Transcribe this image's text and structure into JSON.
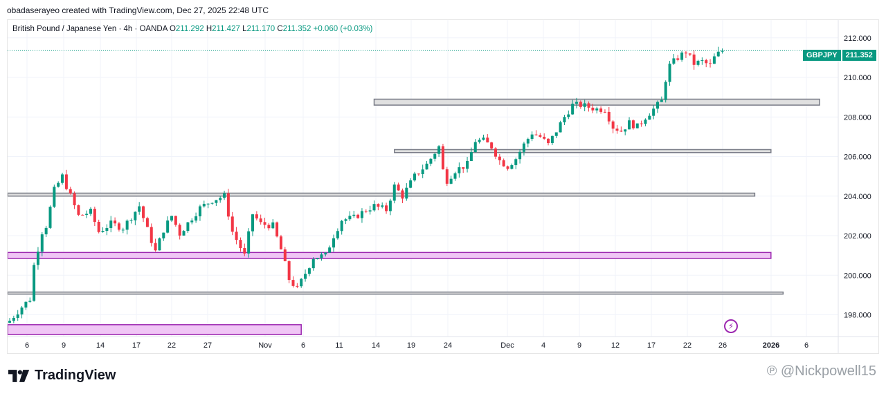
{
  "attribution": "obadaserayeo created with TradingView.com, Dec 27, 2025 22:48 UTC",
  "legend": {
    "symbol_desc": "British Pound / Japanese Yen · 4h · OANDA",
    "open_label": "O",
    "open": "211.292",
    "high_label": "H",
    "high": "211.427",
    "low_label": "L",
    "low": "211.170",
    "close_label": "C",
    "close": "211.352",
    "change": "+0.060 (+0.03%)"
  },
  "price_tag": {
    "symbol": "GBPJPY",
    "price": "211.352"
  },
  "footer": {
    "logo_text": "TradingView",
    "watermark": "℗ @Nickpowell15"
  },
  "colors": {
    "up": "#089981",
    "down": "#f23645",
    "gray_zone": "#e0e0e0",
    "purple_zone": "#f0c6f5",
    "purple_border": "#9c27b0"
  },
  "chart_data": {
    "type": "candlestick",
    "ylim": [
      196.9,
      212.9
    ],
    "y_ticks": [
      "198.000",
      "200.000",
      "202.000",
      "204.000",
      "206.000",
      "208.000",
      "210.000",
      "212.000"
    ],
    "y_tick_values": [
      198,
      200,
      202,
      204,
      206,
      208,
      210,
      212
    ],
    "x_ticks": [
      "6",
      "9",
      "14",
      "17",
      "22",
      "27",
      "Nov",
      "6",
      "11",
      "14",
      "19",
      "24",
      "Dec",
      "4",
      "9",
      "12",
      "17",
      "22",
      "26",
      "2026",
      "6"
    ],
    "last_price": 211.352,
    "path": [
      [
        0,
        197.7
      ],
      [
        3,
        198.4
      ],
      [
        5,
        198.8
      ],
      [
        6,
        200.5
      ],
      [
        8,
        202.2
      ],
      [
        9,
        202.5
      ],
      [
        11,
        204.3
      ],
      [
        13,
        205.0
      ],
      [
        15,
        204.0
      ],
      [
        17,
        203.0
      ],
      [
        20,
        203.2
      ],
      [
        22,
        202.2
      ],
      [
        25,
        202.6
      ],
      [
        28,
        202.4
      ],
      [
        32,
        203.5
      ],
      [
        34,
        202.3
      ],
      [
        36,
        201.2
      ],
      [
        38,
        202.3
      ],
      [
        40,
        203.0
      ],
      [
        42,
        202.1
      ],
      [
        45,
        202.9
      ],
      [
        47,
        203.4
      ],
      [
        50,
        203.8
      ],
      [
        53,
        204.0
      ],
      [
        55,
        202.2
      ],
      [
        58,
        201.0
      ],
      [
        60,
        203.1
      ],
      [
        62,
        202.6
      ],
      [
        65,
        202.5
      ],
      [
        67,
        201.3
      ],
      [
        69,
        199.8
      ],
      [
        71,
        199.3
      ],
      [
        73,
        200.1
      ],
      [
        75,
        200.9
      ],
      [
        78,
        201.0
      ],
      [
        80,
        202.0
      ],
      [
        82,
        202.8
      ],
      [
        85,
        202.9
      ],
      [
        88,
        203.3
      ],
      [
        90,
        203.5
      ],
      [
        93,
        203.3
      ],
      [
        95,
        204.5
      ],
      [
        97,
        204.0
      ],
      [
        100,
        205.0
      ],
      [
        103,
        205.6
      ],
      [
        105,
        206.2
      ],
      [
        106,
        206.5
      ],
      [
        107,
        205.3
      ],
      [
        108,
        204.8
      ],
      [
        110,
        205.3
      ],
      [
        113,
        205.6
      ],
      [
        115,
        206.8
      ],
      [
        117,
        206.8
      ],
      [
        119,
        206.5
      ],
      [
        121,
        205.8
      ],
      [
        123,
        205.5
      ],
      [
        125,
        205.9
      ],
      [
        127,
        206.6
      ],
      [
        129,
        207.2
      ],
      [
        131,
        207.0
      ],
      [
        133,
        206.6
      ],
      [
        135,
        207.3
      ],
      [
        137,
        208.0
      ],
      [
        139,
        208.6
      ],
      [
        141,
        208.6
      ],
      [
        143,
        208.5
      ],
      [
        145,
        208.4
      ],
      [
        147,
        208.4
      ],
      [
        149,
        207.5
      ],
      [
        151,
        207.3
      ],
      [
        153,
        207.7
      ],
      [
        155,
        207.5
      ],
      [
        157,
        208.0
      ],
      [
        159,
        208.4
      ],
      [
        161,
        208.8
      ],
      [
        162,
        209.9
      ],
      [
        163,
        210.6
      ],
      [
        165,
        211.0
      ],
      [
        167,
        211.3
      ],
      [
        169,
        210.7
      ],
      [
        171,
        210.8
      ],
      [
        173,
        210.6
      ],
      [
        174,
        211.0
      ],
      [
        175,
        211.2
      ],
      [
        176,
        211.35
      ]
    ],
    "zones": [
      {
        "kind": "gray",
        "from": 90,
        "to": 200,
        "low": 208.6,
        "high": 208.9
      },
      {
        "kind": "gray",
        "from": 95,
        "to": 188,
        "low": 206.2,
        "high": 206.35
      },
      {
        "kind": "gray",
        "from": -1,
        "to": 184,
        "low": 204.0,
        "high": 204.15
      },
      {
        "kind": "purple",
        "from": -1,
        "to": 188,
        "low": 200.85,
        "high": 201.15
      },
      {
        "kind": "gray",
        "from": -1,
        "to": 191,
        "low": 199.1,
        "high": 199.15
      },
      {
        "kind": "purple",
        "from": -1,
        "to": 72,
        "low": 197.0,
        "high": 197.5
      }
    ]
  }
}
